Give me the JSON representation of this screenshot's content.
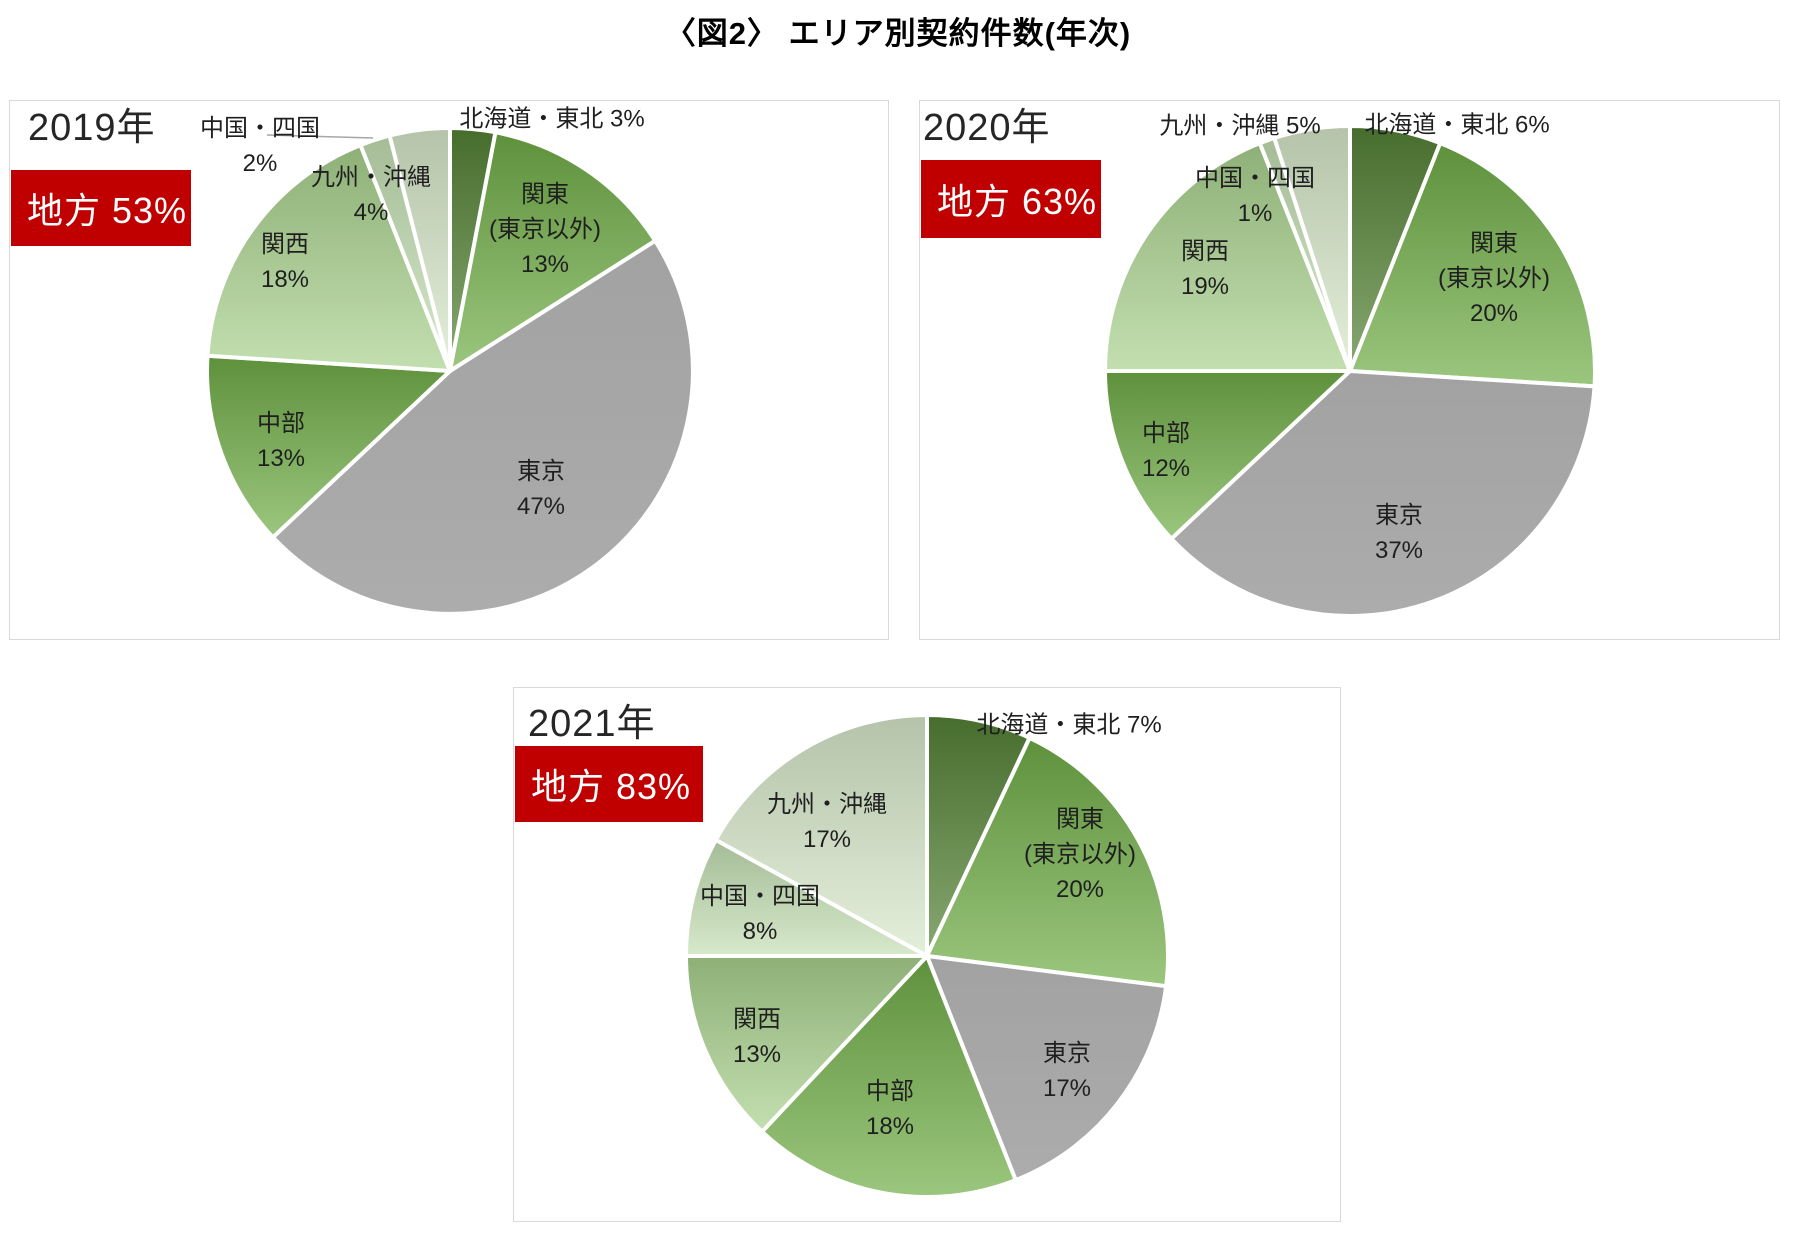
{
  "title": "〈図2〉 エリア別契約件数(年次)",
  "colors": {
    "badge_bg": "#c00000",
    "badge_text": "#ffffff",
    "panel_border": "#d9d9d9",
    "palette": [
      "#548235",
      "#70ad47",
      "#a7a7a7",
      "#70ad47",
      "#a9d18e",
      "#c5e0b4",
      "#d8e8ca"
    ]
  },
  "chart_data": [
    {
      "type": "pie",
      "title": "2019年",
      "badge": "地方 53%",
      "legend_position": "none",
      "categories": [
        "北海道・東北",
        "関東(東京以外)",
        "東京",
        "中部",
        "関西",
        "中国・四国",
        "九州・沖縄"
      ],
      "values": [
        3,
        13,
        47,
        13,
        18,
        2,
        4
      ],
      "slices": [
        {
          "name": "北海道・東北",
          "value": 3,
          "lines": [
            "北海道・東北 3%"
          ]
        },
        {
          "name": "関東(東京以外)",
          "value": 13,
          "lines": [
            "関東",
            "(東京以外)",
            "13%"
          ]
        },
        {
          "name": "東京",
          "value": 47,
          "lines": [
            "東京",
            "47%"
          ]
        },
        {
          "name": "中部",
          "value": 13,
          "lines": [
            "中部",
            "13%"
          ]
        },
        {
          "name": "関西",
          "value": 18,
          "lines": [
            "関西",
            "18%"
          ]
        },
        {
          "name": "中国・四国",
          "value": 2,
          "lines": [
            "中国・四国",
            "2%"
          ]
        },
        {
          "name": "九州・沖縄",
          "value": 4,
          "lines": [
            "九州・沖縄",
            "4%"
          ]
        }
      ]
    },
    {
      "type": "pie",
      "title": "2020年",
      "badge": "地方 63%",
      "legend_position": "none",
      "categories": [
        "北海道・東北",
        "関東(東京以外)",
        "東京",
        "中部",
        "関西",
        "中国・四国",
        "九州・沖縄"
      ],
      "values": [
        6,
        20,
        37,
        12,
        19,
        1,
        5
      ],
      "slices": [
        {
          "name": "北海道・東北",
          "value": 6,
          "lines": [
            "北海道・東北 6%"
          ]
        },
        {
          "name": "関東(東京以外)",
          "value": 20,
          "lines": [
            "関東",
            "(東京以外)",
            "20%"
          ]
        },
        {
          "name": "東京",
          "value": 37,
          "lines": [
            "東京",
            "37%"
          ]
        },
        {
          "name": "中部",
          "value": 12,
          "lines": [
            "中部",
            "12%"
          ]
        },
        {
          "name": "関西",
          "value": 19,
          "lines": [
            "関西",
            "19%"
          ]
        },
        {
          "name": "中国・四国",
          "value": 1,
          "lines": [
            "中国・四国",
            "1%"
          ]
        },
        {
          "name": "九州・沖縄",
          "value": 5,
          "lines": [
            "九州・沖縄 5%"
          ]
        }
      ]
    },
    {
      "type": "pie",
      "title": "2021年",
      "badge": "地方 83%",
      "legend_position": "none",
      "categories": [
        "北海道・東北",
        "関東(東京以外)",
        "東京",
        "中部",
        "関西",
        "中国・四国",
        "九州・沖縄"
      ],
      "values": [
        7,
        20,
        17,
        18,
        13,
        8,
        17
      ],
      "slices": [
        {
          "name": "北海道・東北",
          "value": 7,
          "lines": [
            "北海道・東北 7%"
          ]
        },
        {
          "name": "関東(東京以外)",
          "value": 20,
          "lines": [
            "関東",
            "(東京以外)",
            "20%"
          ]
        },
        {
          "name": "東京",
          "value": 17,
          "lines": [
            "東京",
            "17%"
          ]
        },
        {
          "name": "中部",
          "value": 18,
          "lines": [
            "中部",
            "18%"
          ]
        },
        {
          "name": "関西",
          "value": 13,
          "lines": [
            "関西",
            "13%"
          ]
        },
        {
          "name": "中国・四国",
          "value": 8,
          "lines": [
            "中国・四国",
            "8%"
          ]
        },
        {
          "name": "九州・沖縄",
          "value": 17,
          "lines": [
            "九州・沖縄",
            "17%"
          ]
        }
      ]
    }
  ]
}
